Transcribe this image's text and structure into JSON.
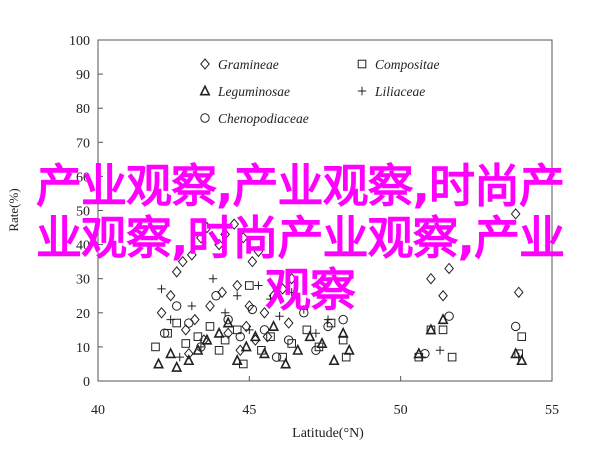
{
  "chart_data": {
    "type": "scatter",
    "title": "",
    "xlabel": "Latitude(°N)",
    "ylabel": "Rate(%)",
    "xlim": [
      40,
      55
    ],
    "ylim": [
      0,
      100
    ],
    "xticks": [
      "40",
      "45",
      "50",
      "55"
    ],
    "yticks": [
      "0",
      "10",
      "20",
      "30",
      "40",
      "50",
      "60",
      "70",
      "80",
      "90",
      "100"
    ],
    "grid": false,
    "legend_position": "top-left",
    "series": [
      {
        "name": "Gramineae",
        "marker": "diamond",
        "points": [
          [
            42.1,
            20
          ],
          [
            42.4,
            25
          ],
          [
            42.6,
            32
          ],
          [
            42.8,
            35
          ],
          [
            43.1,
            37
          ],
          [
            43.4,
            42
          ],
          [
            43.6,
            45
          ],
          [
            44.0,
            40
          ],
          [
            44.2,
            43
          ],
          [
            44.5,
            46
          ],
          [
            44.8,
            42
          ],
          [
            45.1,
            35
          ],
          [
            45.3,
            38
          ],
          [
            43.2,
            18
          ],
          [
            43.7,
            22
          ],
          [
            44.1,
            26
          ],
          [
            44.6,
            28
          ],
          [
            45.0,
            22
          ],
          [
            45.5,
            20
          ],
          [
            45.8,
            25
          ],
          [
            46.1,
            27
          ],
          [
            46.4,
            30
          ],
          [
            42.9,
            15
          ],
          [
            43.5,
            12
          ],
          [
            44.3,
            14
          ],
          [
            44.9,
            16
          ],
          [
            45.6,
            13
          ],
          [
            46.3,
            17
          ],
          [
            43.0,
            8
          ],
          [
            44.7,
            9
          ],
          [
            45.2,
            12
          ],
          [
            51.0,
            30
          ],
          [
            51.4,
            25
          ],
          [
            51.6,
            33
          ],
          [
            53.8,
            49
          ],
          [
            53.9,
            26
          ]
        ]
      },
      {
        "name": "Compositae",
        "marker": "square",
        "points": [
          [
            41.9,
            10
          ],
          [
            42.3,
            14
          ],
          [
            42.6,
            17
          ],
          [
            42.9,
            11
          ],
          [
            43.3,
            13
          ],
          [
            43.7,
            16
          ],
          [
            44.0,
            9
          ],
          [
            44.2,
            12
          ],
          [
            44.6,
            15
          ],
          [
            44.8,
            5
          ],
          [
            45.0,
            28
          ],
          [
            45.4,
            9
          ],
          [
            45.7,
            13
          ],
          [
            46.1,
            7
          ],
          [
            46.4,
            11
          ],
          [
            46.9,
            15
          ],
          [
            47.3,
            10
          ],
          [
            47.7,
            17
          ],
          [
            48.1,
            12
          ],
          [
            48.2,
            7
          ],
          [
            50.6,
            7
          ],
          [
            51.0,
            15
          ],
          [
            51.4,
            15
          ],
          [
            51.7,
            7
          ],
          [
            53.9,
            8
          ],
          [
            54.0,
            13
          ]
        ]
      },
      {
        "name": "Leguminosae",
        "marker": "triangle",
        "points": [
          [
            42.0,
            5
          ],
          [
            42.4,
            8
          ],
          [
            42.6,
            4
          ],
          [
            43.0,
            6
          ],
          [
            43.3,
            9
          ],
          [
            43.6,
            12
          ],
          [
            44.0,
            14
          ],
          [
            44.3,
            17
          ],
          [
            44.6,
            6
          ],
          [
            44.9,
            10
          ],
          [
            45.2,
            13
          ],
          [
            45.5,
            8
          ],
          [
            45.8,
            16
          ],
          [
            46.2,
            5
          ],
          [
            46.6,
            9
          ],
          [
            47.0,
            13
          ],
          [
            47.4,
            11
          ],
          [
            47.8,
            6
          ],
          [
            48.1,
            14
          ],
          [
            48.3,
            9
          ],
          [
            50.6,
            8
          ],
          [
            51.0,
            15
          ],
          [
            51.4,
            18
          ],
          [
            53.8,
            8
          ],
          [
            54.0,
            6
          ]
        ]
      },
      {
        "name": "Liliaceae",
        "marker": "plus",
        "points": [
          [
            42.1,
            27
          ],
          [
            42.4,
            18
          ],
          [
            42.7,
            7
          ],
          [
            43.1,
            22
          ],
          [
            43.4,
            10
          ],
          [
            43.8,
            30
          ],
          [
            44.2,
            20
          ],
          [
            44.6,
            25
          ],
          [
            45.0,
            15
          ],
          [
            45.3,
            28
          ],
          [
            45.7,
            24
          ],
          [
            46.0,
            19
          ],
          [
            46.4,
            26
          ],
          [
            46.8,
            21
          ],
          [
            47.2,
            14
          ],
          [
            47.6,
            18
          ],
          [
            50.7,
            7
          ],
          [
            51.3,
            9
          ],
          [
            53.9,
            7
          ]
        ]
      },
      {
        "name": "Chenopodiaceae",
        "marker": "circle",
        "points": [
          [
            42.2,
            14
          ],
          [
            42.6,
            22
          ],
          [
            43.0,
            17
          ],
          [
            43.4,
            10
          ],
          [
            43.9,
            25
          ],
          [
            44.3,
            18
          ],
          [
            44.7,
            13
          ],
          [
            45.1,
            21
          ],
          [
            45.5,
            15
          ],
          [
            45.9,
            7
          ],
          [
            46.3,
            12
          ],
          [
            46.8,
            20
          ],
          [
            47.2,
            9
          ],
          [
            47.6,
            16
          ],
          [
            48.1,
            18
          ],
          [
            50.8,
            8
          ],
          [
            51.6,
            19
          ],
          [
            53.8,
            16
          ]
        ]
      }
    ]
  },
  "overlay_text": {
    "line1": "产业观察,产业观察,时尚产",
    "line2": "业观察,时尚产业观察,产业",
    "line3": "观察"
  }
}
